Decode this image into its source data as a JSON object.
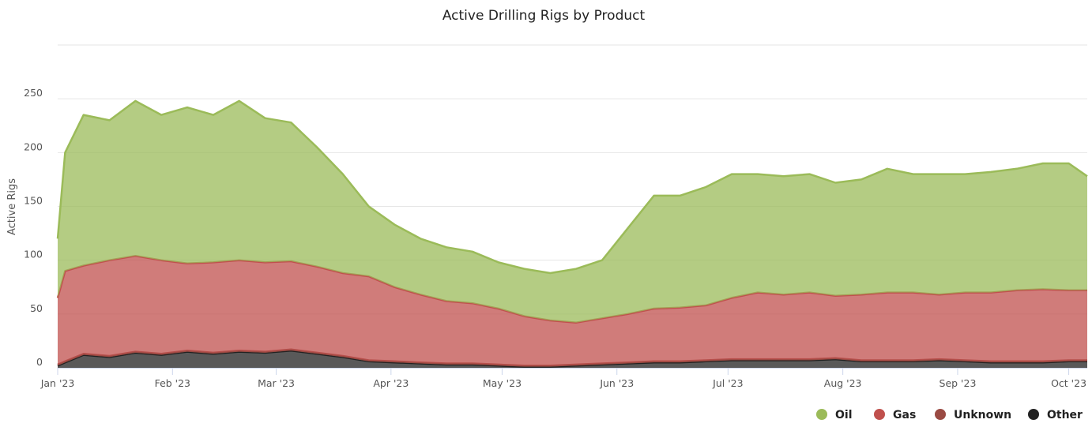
{
  "chart_data": {
    "type": "area",
    "stacked": true,
    "title": "Active Drilling Rigs by Product",
    "xlabel": "",
    "ylabel": "Active Rigs",
    "ylim": [
      0,
      300
    ],
    "yticks": [
      0,
      50,
      100,
      150,
      200,
      250
    ],
    "xlim": [
      "2023-01-01",
      "2023-10-06"
    ],
    "xticks": [
      {
        "date": "2023-01-01",
        "label": "Jan '23"
      },
      {
        "date": "2023-02-01",
        "label": "Feb '23"
      },
      {
        "date": "2023-03-01",
        "label": "Mar '23"
      },
      {
        "date": "2023-04-01",
        "label": "Apr '23"
      },
      {
        "date": "2023-05-01",
        "label": "May '23"
      },
      {
        "date": "2023-06-01",
        "label": "Jun '23"
      },
      {
        "date": "2023-07-01",
        "label": "Jul '23"
      },
      {
        "date": "2023-08-01",
        "label": "Aug '23"
      },
      {
        "date": "2023-09-01",
        "label": "Sep '23"
      },
      {
        "date": "2023-10-01",
        "label": "Oct '23"
      }
    ],
    "grid": true,
    "legend_position": "bottom-right",
    "x": [
      "2023-01-01",
      "2023-01-03",
      "2023-01-08",
      "2023-01-15",
      "2023-01-22",
      "2023-01-29",
      "2023-02-05",
      "2023-02-12",
      "2023-02-19",
      "2023-02-26",
      "2023-03-05",
      "2023-03-12",
      "2023-03-19",
      "2023-03-26",
      "2023-04-02",
      "2023-04-09",
      "2023-04-16",
      "2023-04-23",
      "2023-04-30",
      "2023-05-07",
      "2023-05-14",
      "2023-05-21",
      "2023-05-28",
      "2023-06-04",
      "2023-06-11",
      "2023-06-18",
      "2023-06-25",
      "2023-07-02",
      "2023-07-09",
      "2023-07-16",
      "2023-07-23",
      "2023-07-30",
      "2023-08-06",
      "2023-08-13",
      "2023-08-20",
      "2023-08-27",
      "2023-09-03",
      "2023-09-10",
      "2023-09-17",
      "2023-09-24",
      "2023-10-01",
      "2023-10-06"
    ],
    "series": [
      {
        "name": "Other",
        "color": "#222222",
        "values": [
          2,
          5,
          12,
          10,
          14,
          12,
          15,
          13,
          15,
          14,
          16,
          13,
          10,
          6,
          5,
          4,
          3,
          3,
          2,
          1,
          1,
          2,
          3,
          4,
          5,
          5,
          6,
          7,
          7,
          7,
          7,
          8,
          6,
          6,
          6,
          7,
          6,
          5,
          5,
          5,
          6,
          6
        ]
      },
      {
        "name": "Unknown",
        "color": "#9a4a43",
        "values": [
          1,
          1,
          1,
          1,
          1,
          1,
          1,
          1,
          1,
          1,
          1,
          1,
          1,
          1,
          1,
          1,
          1,
          1,
          1,
          1,
          1,
          1,
          1,
          1,
          1,
          1,
          1,
          1,
          1,
          1,
          1,
          1,
          1,
          1,
          1,
          1,
          1,
          1,
          1,
          1,
          1,
          1
        ]
      },
      {
        "name": "Gas",
        "color": "#c0504d",
        "values": [
          62,
          84,
          82,
          89,
          89,
          87,
          81,
          84,
          84,
          83,
          82,
          80,
          77,
          78,
          69,
          63,
          58,
          56,
          52,
          46,
          42,
          39,
          42,
          45,
          49,
          50,
          51,
          57,
          62,
          60,
          62,
          58,
          61,
          63,
          63,
          60,
          63,
          64,
          66,
          67,
          65,
          65
        ]
      },
      {
        "name": "Oil",
        "color": "#9bbb59",
        "values": [
          55,
          110,
          140,
          130,
          144,
          135,
          145,
          137,
          148,
          134,
          129,
          111,
          92,
          65,
          58,
          52,
          50,
          48,
          43,
          44,
          44,
          50,
          54,
          80,
          105,
          104,
          110,
          115,
          110,
          110,
          110,
          105,
          107,
          115,
          110,
          112,
          110,
          112,
          113,
          117,
          118,
          106
        ]
      }
    ],
    "legend_order": [
      "Oil",
      "Gas",
      "Unknown",
      "Other"
    ]
  }
}
